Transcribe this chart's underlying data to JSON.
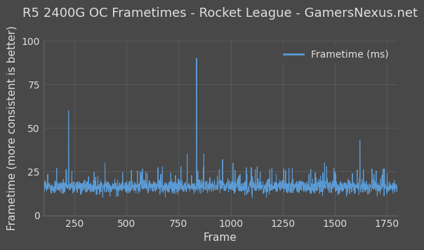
{
  "title": "R5 2400G OC Frametimes - Rocket League - GamersNexus.net",
  "xlabel": "Frame",
  "ylabel": "Frametime (more consistent is better)",
  "legend_label": "Frametime (ms)",
  "background_color": "#484848",
  "plot_bg_color": "#484848",
  "line_color": "#5b9bd5",
  "grid_color": "#666666",
  "text_color": "#e0e0e0",
  "xlim": [
    100,
    1800
  ],
  "ylim": [
    0,
    100
  ],
  "xticks": [
    250,
    500,
    750,
    1000,
    1250,
    1500,
    1750
  ],
  "yticks": [
    0,
    25,
    50,
    75,
    100
  ],
  "title_fontsize": 13,
  "axis_fontsize": 11,
  "tick_fontsize": 10,
  "legend_fontsize": 10,
  "seed": 7,
  "n_frames": 1800,
  "base_mean": 16.5,
  "base_std": 2.0,
  "spike_positions": [
    220,
    221,
    395,
    760,
    790,
    835,
    836,
    870,
    960,
    1010,
    1295,
    1450,
    1460,
    1495,
    1500,
    1620,
    1621
  ],
  "spike_heights": [
    60,
    40,
    30,
    28,
    35,
    90,
    55,
    35,
    32,
    30,
    27,
    30,
    28,
    27,
    25,
    43,
    30
  ]
}
